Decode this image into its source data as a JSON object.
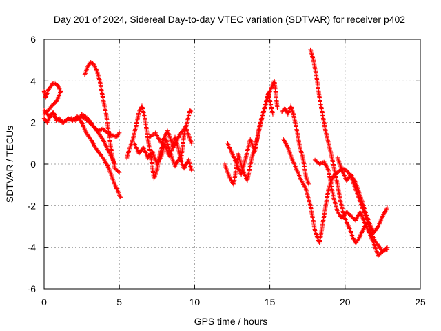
{
  "chart_data": {
    "type": "scatter",
    "title": "Day 201 of 2024, Sidereal Day-to-day VTEC variation (SDTVAR) for receiver p402",
    "xlabel": "GPS time / hours",
    "ylabel": "SDTVAR / TECUs",
    "xlim": [
      0,
      25
    ],
    "ylim": [
      -6,
      6
    ],
    "xticks": [
      0,
      5,
      10,
      15,
      20,
      25
    ],
    "yticks": [
      -6,
      -4,
      -2,
      0,
      2,
      4,
      6
    ],
    "grid": true,
    "marker": "+",
    "color": "#ff0000",
    "series": [
      {
        "name": "seg1",
        "x": [
          0.0,
          0.1,
          0.3,
          0.6,
          0.9,
          1.1,
          1.0,
          0.8,
          0.5,
          0.3,
          0.1,
          0.0
        ],
        "y": [
          3.5,
          3.2,
          3.6,
          3.9,
          3.8,
          3.5,
          3.3,
          3.0,
          2.8,
          2.6,
          2.5,
          2.4
        ]
      },
      {
        "name": "seg2",
        "x": [
          0.0,
          0.2,
          0.4,
          0.6,
          0.8,
          1.0,
          1.2,
          1.5,
          1.8,
          2.1,
          2.4,
          2.7,
          3.0,
          3.3,
          3.6,
          3.9,
          4.2,
          4.5,
          4.8,
          5.0
        ],
        "y": [
          2.6,
          2.4,
          2.3,
          2.5,
          2.2,
          2.1,
          2.0,
          2.1,
          2.2,
          2.1,
          2.3,
          2.2,
          2.0,
          1.8,
          1.6,
          1.7,
          1.5,
          1.4,
          1.3,
          1.5
        ]
      },
      {
        "name": "seg3",
        "x": [
          0.0,
          0.2,
          0.4,
          0.6,
          0.8,
          1.0,
          1.3,
          1.6,
          1.9,
          2.2,
          2.5,
          2.8,
          3.1,
          3.4,
          3.7,
          4.0,
          4.3,
          4.5,
          4.7,
          4.9,
          5.0,
          5.1
        ],
        "y": [
          2.2,
          2.0,
          2.3,
          2.5,
          2.1,
          2.2,
          2.0,
          2.2,
          2.1,
          2.3,
          2.0,
          1.5,
          1.2,
          0.8,
          0.5,
          0.2,
          -0.2,
          -0.6,
          -1.0,
          -1.3,
          -1.5,
          -1.6
        ]
      },
      {
        "name": "seg4",
        "x": [
          2.7,
          2.9,
          3.1,
          3.3,
          3.5,
          3.7,
          3.9,
          4.1,
          4.3,
          4.5,
          4.7,
          5.0
        ],
        "y": [
          4.3,
          4.7,
          4.9,
          4.8,
          4.5,
          4.0,
          3.2,
          2.5,
          1.5,
          0.5,
          -0.2,
          -0.4
        ]
      },
      {
        "name": "seg5",
        "x": [
          2.5,
          2.7,
          2.9,
          3.1,
          3.3,
          3.5,
          3.7,
          3.9,
          4.1,
          4.3,
          4.5,
          4.7
        ],
        "y": [
          2.4,
          2.3,
          2.2,
          2.0,
          1.8,
          1.6,
          1.4,
          1.2,
          0.9,
          0.6,
          0.3,
          0.0
        ]
      },
      {
        "name": "seg6",
        "x": [
          5.5,
          5.7,
          5.9,
          6.1,
          6.3,
          6.5,
          6.7,
          6.9,
          7.1,
          7.3,
          7.5,
          7.7,
          7.9,
          8.1,
          8.3,
          8.5,
          8.7,
          8.9,
          9.1,
          9.3,
          9.5,
          9.7,
          9.8
        ],
        "y": [
          0.3,
          0.8,
          1.2,
          1.8,
          2.5,
          2.8,
          2.2,
          1.2,
          0.3,
          -0.7,
          -0.3,
          0.5,
          1.0,
          0.8,
          0.4,
          0.7,
          1.3,
          0.8,
          0.2,
          1.4,
          2.0,
          2.6,
          2.5
        ]
      },
      {
        "name": "seg7",
        "x": [
          6.0,
          6.3,
          6.6,
          6.9,
          7.2,
          7.5,
          7.8,
          8.1,
          8.4,
          8.7,
          9.0,
          9.3,
          9.6,
          9.8
        ],
        "y": [
          1.0,
          0.5,
          0.8,
          0.3,
          0.6,
          0.0,
          0.4,
          1.2,
          0.5,
          -0.1,
          0.3,
          -0.2,
          0.2,
          -0.3
        ]
      },
      {
        "name": "seg8",
        "x": [
          7.0,
          7.4,
          7.8,
          8.2,
          8.6,
          9.0,
          9.4,
          9.8
        ],
        "y": [
          1.3,
          1.5,
          1.0,
          1.6,
          0.8,
          1.4,
          1.8,
          1.0
        ]
      },
      {
        "name": "seg9",
        "x": [
          12.0,
          12.3,
          12.6,
          12.9,
          13.2,
          13.5,
          13.8,
          14.1,
          14.4,
          14.7,
          15.0,
          15.3,
          15.5
        ],
        "y": [
          0.0,
          -0.6,
          -1.0,
          0.5,
          -0.3,
          -0.8,
          0.3,
          1.0,
          2.0,
          2.8,
          3.5,
          4.0,
          2.7
        ]
      },
      {
        "name": "seg10",
        "x": [
          12.2,
          12.5,
          12.8,
          13.1,
          13.4,
          13.7,
          14.0,
          14.3,
          14.6,
          14.9,
          15.2
        ],
        "y": [
          1.0,
          0.5,
          0.0,
          -0.5,
          0.3,
          1.2,
          0.6,
          1.8,
          2.6,
          3.4,
          2.4
        ]
      },
      {
        "name": "seg11",
        "x": [
          15.8,
          16.0,
          16.2,
          16.4,
          16.6,
          16.8,
          17.0,
          17.2,
          17.4,
          17.6
        ],
        "y": [
          2.5,
          2.7,
          2.4,
          2.8,
          2.3,
          1.6,
          0.8,
          0.3,
          -0.6,
          -1.0
        ]
      },
      {
        "name": "seg12",
        "x": [
          15.9,
          16.2,
          16.5,
          16.8,
          17.1,
          17.4,
          17.7,
          18.0,
          18.3,
          18.6,
          18.9,
          19.2,
          19.5,
          19.8,
          20.1,
          20.4,
          20.7,
          21.0,
          21.3,
          21.6,
          21.9,
          22.2,
          22.5,
          22.8
        ],
        "y": [
          1.2,
          0.8,
          0.2,
          -0.3,
          -0.8,
          -1.2,
          -2.0,
          -3.2,
          -3.8,
          -2.5,
          -1.2,
          -0.6,
          -0.4,
          -0.2,
          -0.3,
          -0.6,
          -1.2,
          -1.8,
          -2.4,
          -3.0,
          -3.6,
          -3.9,
          -4.2,
          -4.1
        ]
      },
      {
        "name": "seg13",
        "x": [
          17.7,
          17.9,
          18.1,
          18.3,
          18.5,
          18.7,
          18.9,
          19.1,
          19.3,
          19.5,
          19.7,
          19.9,
          20.1,
          20.3,
          20.5,
          20.7,
          20.9,
          21.1,
          21.3,
          21.5
        ],
        "y": [
          5.5,
          5.0,
          4.2,
          3.2,
          2.4,
          1.6,
          1.0,
          0.4,
          -0.3,
          -1.0,
          -1.8,
          -2.4,
          -2.8,
          -3.1,
          -3.5,
          -3.8,
          -3.6,
          -3.3,
          -3.0,
          -2.8
        ]
      },
      {
        "name": "seg14",
        "x": [
          18.0,
          18.3,
          18.6,
          18.9,
          19.2,
          19.5,
          19.8,
          20.1,
          20.4,
          20.7,
          21.0,
          21.3,
          21.6,
          21.9,
          22.2,
          22.5,
          22.8
        ],
        "y": [
          0.2,
          0.0,
          0.1,
          -0.3,
          -1.5,
          -2.3,
          -2.6,
          -2.3,
          -2.5,
          -2.7,
          -2.3,
          -2.8,
          -3.3,
          -3.8,
          -4.4,
          -4.2,
          -4.0
        ]
      },
      {
        "name": "seg15",
        "x": [
          19.5,
          19.8,
          20.1,
          20.4,
          20.7,
          21.0,
          21.3,
          21.6,
          21.9,
          22.2,
          22.5,
          22.8
        ],
        "y": [
          0.3,
          -0.3,
          -0.8,
          -0.5,
          -0.9,
          -1.5,
          -2.2,
          -2.8,
          -3.3,
          -3.0,
          -2.5,
          -2.1
        ]
      }
    ]
  }
}
